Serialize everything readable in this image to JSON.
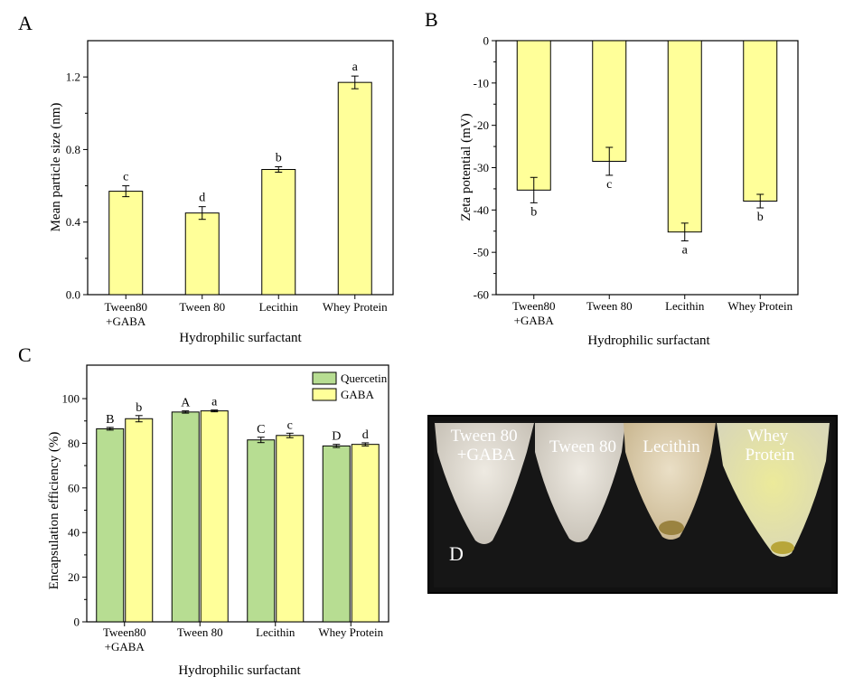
{
  "colors": {
    "gaba": "#ffff99",
    "quercetin": "#b7dd92",
    "bar_stroke": "#000000",
    "photo_bg": "#111111"
  },
  "chart_data": [
    {
      "panel": "A",
      "type": "bar",
      "categories": [
        "Tween80\n+GABA",
        "Tween 80",
        "Lecithin",
        "Whey Protein"
      ],
      "values": [
        0.57,
        0.45,
        0.69,
        1.17
      ],
      "errors": [
        0.03,
        0.035,
        0.015,
        0.035
      ],
      "letters": [
        "c",
        "d",
        "b",
        "a"
      ],
      "xlabel": "Hydrophilic surfactant",
      "ylabel": "Mean particle size (nm)",
      "ylim": [
        0,
        1.4
      ],
      "yticks": [
        "0.0",
        "0.4",
        "0.8",
        "1.2"
      ]
    },
    {
      "panel": "B",
      "type": "bar",
      "categories": [
        "Tween80\n+GABA",
        "Tween 80",
        "Lecithin",
        "Whey Protein"
      ],
      "values": [
        -35.3,
        -28.5,
        -45.2,
        -37.9
      ],
      "errors": [
        3.0,
        3.3,
        2.1,
        1.6
      ],
      "letters": [
        "b",
        "c",
        "a",
        "b"
      ],
      "xlabel": "Hydrophilic surfactant",
      "ylabel": "Zeta potential (mV)",
      "ylim": [
        -60,
        0
      ],
      "yticks": [
        "0",
        "-10",
        "-20",
        "-30",
        "-40",
        "-50",
        "-60"
      ]
    },
    {
      "panel": "C",
      "type": "bar",
      "categories": [
        "Tween80\n+GABA",
        "Tween 80",
        "Lecithin",
        "Whey Protein"
      ],
      "series": [
        {
          "name": "Quercetin",
          "values": [
            86.5,
            94.0,
            81.5,
            78.8
          ],
          "errors": [
            0.6,
            0.5,
            1.2,
            0.7
          ],
          "letters": [
            "B",
            "A",
            "C",
            "D"
          ]
        },
        {
          "name": "GABA",
          "values": [
            91.0,
            94.5,
            83.5,
            79.5
          ],
          "errors": [
            1.4,
            0.4,
            1.0,
            0.7
          ],
          "letters": [
            "b",
            "a",
            "c",
            "d"
          ]
        }
      ],
      "xlabel": "Hydrophilic surfactant",
      "ylabel": "Encapsulation efficiency (%)",
      "ylim": [
        0,
        115
      ],
      "yticks": [
        "0",
        "20",
        "40",
        "60",
        "80",
        "100"
      ],
      "legend": "top-right"
    }
  ],
  "photo": {
    "panel": "D",
    "labels": [
      "Tween 80\n+GABA",
      "Tween 80",
      "Lecithin",
      "Whey\nProtein"
    ]
  }
}
